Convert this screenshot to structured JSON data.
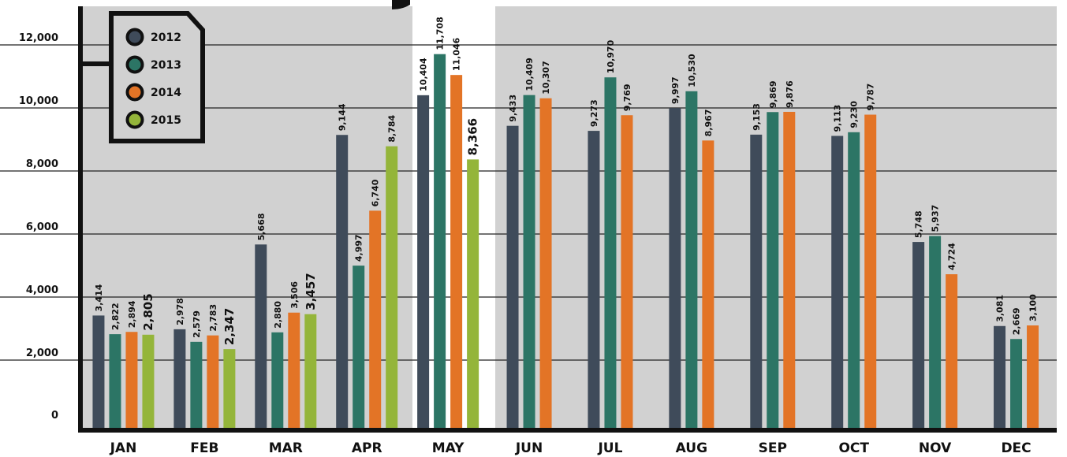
{
  "colors": {
    "2012": "#3f4b5a",
    "2013": "#2c7565",
    "2014": "#e37426",
    "2015": "#94b53a",
    "panel": "#d1d1d1",
    "axis": "#111111"
  },
  "chart_data": {
    "type": "bar",
    "title": "",
    "xlabel": "",
    "ylabel": "",
    "ylim": [
      0,
      13000
    ],
    "yticks": [
      0,
      2000,
      4000,
      6000,
      8000,
      10000,
      12000
    ],
    "ytick_labels": [
      "0",
      "2,000",
      "4,000",
      "6,000",
      "8,000",
      "10,000",
      "12,000"
    ],
    "grid": true,
    "legend_position": "top-left",
    "categories": [
      "JAN",
      "FEB",
      "MAR",
      "APR",
      "MAY",
      "JUN",
      "JUL",
      "AUG",
      "SEP",
      "OCT",
      "NOV",
      "DEC"
    ],
    "series": [
      {
        "name": "2012",
        "values": [
          3414,
          2978,
          5668,
          9144,
          10404,
          9433,
          9273,
          9997,
          9153,
          9113,
          5748,
          3081
        ],
        "labels": [
          "3,414",
          "2,978",
          "5,668",
          "9,144",
          "10,404",
          "9,433",
          "9,273",
          "9,997",
          "9,153",
          "9,113",
          "5,748",
          "3,081"
        ]
      },
      {
        "name": "2013",
        "values": [
          2822,
          2579,
          2880,
          4997,
          11708,
          10409,
          10970,
          10530,
          9869,
          9230,
          5937,
          2669
        ],
        "labels": [
          "2,822",
          "2,579",
          "2,880",
          "4,997",
          "11,708",
          "10,409",
          "10,970",
          "10,530",
          "9,869",
          "9,230",
          "5,937",
          "2,669"
        ]
      },
      {
        "name": "2014",
        "values": [
          2894,
          2783,
          3506,
          6740,
          11046,
          10307,
          9769,
          8967,
          9876,
          9787,
          4724,
          3100
        ],
        "labels": [
          "2,894",
          "2,783",
          "3,506",
          "6,740",
          "11,046",
          "10,307",
          "9,769",
          "8,967",
          "9,876",
          "9,787",
          "4,724",
          "3,100"
        ]
      },
      {
        "name": "2015",
        "values": [
          2805,
          2347,
          3457,
          8784,
          8366,
          null,
          null,
          null,
          null,
          null,
          null,
          null
        ],
        "labels": [
          "2,805",
          "2,347",
          "3,457",
          "8,784",
          "8,366",
          null,
          null,
          null,
          null,
          null,
          null,
          null
        ]
      }
    ]
  }
}
